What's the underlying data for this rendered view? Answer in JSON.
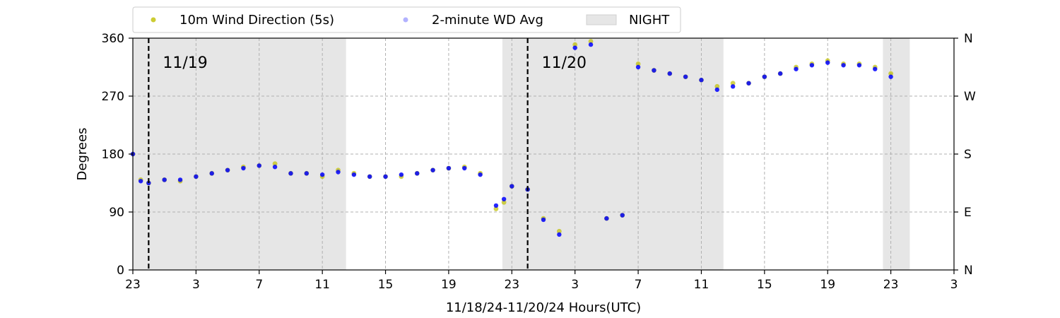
{
  "chart_data": {
    "type": "scatter",
    "title": "",
    "xlabel": "11/18/24-11/20/24  Hours(UTC)",
    "ylabel": "Degrees",
    "x_unit": "hours since 11/18/24 23:00 UTC",
    "xlim": [
      0,
      52
    ],
    "ylim": [
      0,
      360
    ],
    "x_tick_values": [
      0,
      4,
      8,
      12,
      16,
      20,
      24,
      28,
      32,
      36,
      40,
      44,
      48,
      52
    ],
    "x_tick_labels": [
      "23",
      "3",
      "7",
      "11",
      "15",
      "19",
      "23",
      "3",
      "7",
      "11",
      "15",
      "19",
      "23",
      "3"
    ],
    "y_ticks": [
      0,
      90,
      180,
      270,
      360
    ],
    "y_tick_labels": [
      "0",
      "90",
      "180",
      "270",
      "360"
    ],
    "y2_ticks": [
      0,
      90,
      180,
      270,
      360
    ],
    "y2_tick_labels": [
      "N",
      "E",
      "S",
      "W",
      "N"
    ],
    "grid": true,
    "legend_position": "top",
    "night_periods": [
      [
        0,
        13.5
      ],
      [
        23.4,
        37.4
      ],
      [
        47.5,
        49.2
      ]
    ],
    "day_markers": [
      {
        "x": 1,
        "label": "11/19"
      },
      {
        "x": 25,
        "label": "11/20"
      }
    ],
    "series": [
      {
        "name": "10m Wind Direction (5s)",
        "color": "#bfbf00",
        "marker": "dot",
        "x": [
          0,
          0.5,
          1,
          2,
          3,
          4,
          5,
          6,
          7,
          8,
          9,
          10,
          11,
          12,
          13,
          14,
          15,
          16,
          17,
          18,
          19,
          20,
          21,
          22,
          23,
          23.5,
          24,
          25,
          26,
          27,
          28,
          29,
          30,
          31,
          32,
          33,
          34,
          35,
          36,
          37,
          38,
          39,
          40,
          41,
          42,
          43,
          44,
          45,
          46,
          47,
          48
        ],
        "y": [
          180,
          140,
          135,
          140,
          138,
          145,
          150,
          155,
          160,
          162,
          165,
          150,
          150,
          145,
          155,
          150,
          145,
          145,
          145,
          150,
          155,
          158,
          160,
          150,
          95,
          105,
          130,
          125,
          80,
          60,
          350,
          355,
          80,
          85,
          320,
          310,
          305,
          300,
          295,
          285,
          290,
          290,
          300,
          305,
          315,
          320,
          325,
          320,
          320,
          315,
          305
        ]
      },
      {
        "name": "2-minute WD Avg",
        "color": "#0000ff",
        "marker": "dot",
        "x": [
          0,
          0.5,
          1,
          2,
          3,
          4,
          5,
          6,
          7,
          8,
          9,
          10,
          11,
          12,
          13,
          14,
          15,
          16,
          17,
          18,
          19,
          20,
          21,
          22,
          23,
          23.5,
          24,
          25,
          26,
          27,
          28,
          29,
          30,
          31,
          32,
          33,
          34,
          35,
          36,
          37,
          38,
          39,
          40,
          41,
          42,
          43,
          44,
          45,
          46,
          47,
          48
        ],
        "y": [
          180,
          138,
          135,
          140,
          140,
          145,
          150,
          155,
          158,
          162,
          160,
          150,
          150,
          148,
          152,
          148,
          145,
          145,
          148,
          150,
          155,
          158,
          158,
          148,
          100,
          110,
          130,
          125,
          78,
          55,
          345,
          350,
          80,
          85,
          315,
          310,
          305,
          300,
          295,
          280,
          285,
          290,
          300,
          305,
          312,
          318,
          322,
          318,
          318,
          312,
          300
        ]
      }
    ],
    "legend": [
      {
        "label": "10m Wind Direction (5s)",
        "color": "#bfbf00",
        "kind": "dot"
      },
      {
        "label": "2-minute WD Avg",
        "color": "#0000ff",
        "kind": "dot"
      },
      {
        "label": "NIGHT",
        "color": "#e6e6e6",
        "kind": "patch"
      }
    ]
  }
}
